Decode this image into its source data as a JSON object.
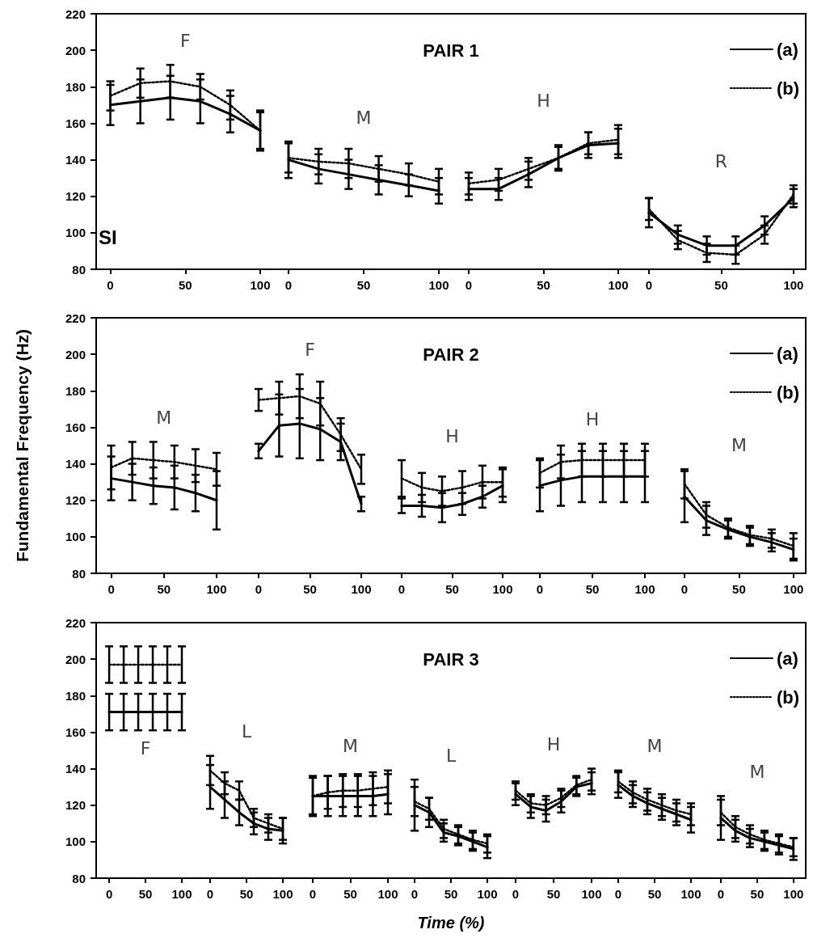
{
  "chart_data": [
    {
      "type": "line",
      "annotations": [
        "F",
        "SI"
      ],
      "xlim": [
        -10,
        100
      ],
      "xticks": [
        0,
        50,
        100
      ],
      "ylim": [
        80,
        220
      ],
      "yticks": [
        80,
        100,
        120,
        140,
        160,
        180,
        200,
        220
      ],
      "x": [
        0,
        20,
        40,
        60,
        80,
        100
      ],
      "series": [
        {
          "color": "#000000",
          "line_style": "solid",
          "values": [
            170,
            172,
            174,
            172,
            165,
            156
          ],
          "errors": [
            11,
            12,
            12,
            12,
            10,
            11
          ]
        },
        {
          "color": "#000000",
          "line_style": "dotted",
          "values": [
            175,
            182,
            183,
            180,
            170,
            156
          ],
          "errors": [
            8,
            8,
            9,
            7,
            8,
            10
          ]
        }
      ]
    },
    {
      "type": "line",
      "annotations": [
        "M"
      ],
      "tick_labels": "x",
      "xlim": [
        0,
        100
      ],
      "xticks": [
        0,
        50,
        100
      ],
      "ylim": [
        80,
        220
      ],
      "yticks": [
        80,
        100,
        120,
        140,
        160,
        180,
        200,
        220
      ],
      "x": [
        0,
        20,
        40,
        60,
        80,
        100
      ],
      "series": [
        {
          "color": "#000000",
          "line_style": "solid",
          "values": [
            140,
            135,
            132,
            129,
            126,
            123
          ],
          "errors": [
            10,
            8,
            8,
            8,
            6,
            7
          ]
        },
        {
          "color": "#000000",
          "line_style": "dotted",
          "values": [
            141,
            139,
            138,
            135,
            132,
            128
          ],
          "errors": [
            8,
            7,
            8,
            7,
            6,
            7
          ]
        }
      ]
    },
    {
      "type": "line",
      "title": "PAIR 1",
      "annotations": [
        "H"
      ],
      "tick_labels": "x",
      "xlim": [
        0,
        100
      ],
      "xticks": [
        0,
        50,
        100
      ],
      "ylim": [
        80,
        220
      ],
      "yticks": [
        80,
        100,
        120,
        140,
        160,
        180,
        200,
        220
      ],
      "x": [
        0,
        20,
        40,
        60,
        80,
        100
      ],
      "series": [
        {
          "color": "#000000",
          "line_style": "solid",
          "values": [
            124,
            124,
            132,
            141,
            148,
            149
          ],
          "errors": [
            6,
            6,
            7,
            7,
            7,
            8
          ]
        },
        {
          "color": "#000000",
          "line_style": "dotted",
          "values": [
            127,
            129,
            135,
            141,
            149,
            151
          ],
          "errors": [
            6,
            6,
            6,
            6,
            6,
            8
          ]
        }
      ]
    },
    {
      "type": "line",
      "annotations": [
        "R"
      ],
      "tick_labels": "x",
      "legend": "top right",
      "xlim": [
        0,
        109
      ],
      "xticks": [
        0,
        50,
        100
      ],
      "ylim": [
        80,
        220
      ],
      "yticks": [
        80,
        100,
        120,
        140,
        160,
        180,
        200,
        220
      ],
      "x": [
        0,
        20,
        40,
        60,
        80,
        100
      ],
      "series": [
        {
          "name": "(a)",
          "color": "#000000",
          "line_style": "solid",
          "values": [
            111,
            99,
            93,
            93,
            104,
            119
          ],
          "errors": [
            8,
            5,
            5,
            5,
            5,
            5
          ]
        },
        {
          "name": "(b)",
          "color": "#000000",
          "line_style": "dotted",
          "values": [
            113,
            96,
            89,
            88,
            99,
            121
          ],
          "errors": [
            6,
            5,
            5,
            5,
            5,
            5
          ]
        }
      ]
    },
    {
      "type": "line",
      "ylabel": "Fundamental Frequency (Hz)",
      "annotations": [
        "M"
      ],
      "xlim": [
        -15,
        100
      ],
      "xticks": [
        0,
        50,
        100
      ],
      "ylim": [
        80,
        220
      ],
      "yticks": [
        80,
        100,
        120,
        140,
        160,
        180,
        200,
        220
      ],
      "x": [
        0,
        20,
        40,
        60,
        80,
        100
      ],
      "series": [
        {
          "color": "#000000",
          "line_style": "solid",
          "values": [
            132,
            130,
            128,
            127,
            124,
            120
          ],
          "errors": [
            12,
            10,
            10,
            12,
            10,
            16
          ]
        },
        {
          "color": "#000000",
          "line_style": "dotted",
          "values": [
            138,
            143,
            142,
            141,
            139,
            137
          ],
          "errors": [
            12,
            9,
            10,
            9,
            9,
            9
          ]
        }
      ]
    },
    {
      "type": "line",
      "annotations": [
        "F"
      ],
      "tick_labels": "x",
      "xlim": [
        0,
        100
      ],
      "xticks": [
        0,
        50,
        100
      ],
      "ylim": [
        80,
        220
      ],
      "yticks": [
        80,
        100,
        120,
        140,
        160,
        180,
        200,
        220
      ],
      "x": [
        0,
        20,
        40,
        60,
        80,
        100
      ],
      "series": [
        {
          "color": "#000000",
          "line_style": "solid",
          "values": [
            147,
            161,
            162,
            159,
            152,
            118
          ],
          "errors": [
            4,
            17,
            19,
            17,
            10,
            4
          ]
        },
        {
          "color": "#000000",
          "line_style": "dotted",
          "values": [
            175,
            176,
            177,
            173,
            156,
            137
          ],
          "errors": [
            6,
            9,
            12,
            12,
            9,
            8
          ]
        }
      ]
    },
    {
      "type": "line",
      "title": "PAIR 2",
      "annotations": [
        "H"
      ],
      "tick_labels": "x",
      "xlim": [
        0,
        100
      ],
      "xticks": [
        0,
        50,
        100
      ],
      "ylim": [
        80,
        220
      ],
      "yticks": [
        80,
        100,
        120,
        140,
        160,
        180,
        200,
        220
      ],
      "x": [
        0,
        20,
        40,
        60,
        80,
        100
      ],
      "series": [
        {
          "color": "#000000",
          "line_style": "solid",
          "values": [
            117,
            117,
            116,
            118,
            122,
            128
          ],
          "errors": [
            4,
            6,
            8,
            6,
            6,
            9
          ]
        },
        {
          "color": "#000000",
          "line_style": "dotted",
          "values": [
            132,
            127,
            125,
            127,
            130,
            130
          ],
          "errors": [
            10,
            8,
            8,
            9,
            9,
            8
          ]
        }
      ]
    },
    {
      "type": "line",
      "annotations": [
        "H"
      ],
      "tick_labels": "x",
      "xlim": [
        0,
        100
      ],
      "xticks": [
        0,
        50,
        100
      ],
      "ylim": [
        80,
        220
      ],
      "yticks": [
        80,
        100,
        120,
        140,
        160,
        180,
        200,
        220
      ],
      "x": [
        0,
        20,
        40,
        60,
        80,
        100
      ],
      "series": [
        {
          "color": "#000000",
          "line_style": "solid",
          "values": [
            128,
            131,
            133,
            133,
            133,
            133
          ],
          "errors": [
            14,
            14,
            14,
            14,
            14,
            14
          ]
        },
        {
          "color": "#000000",
          "line_style": "dotted",
          "values": [
            135,
            141,
            142,
            142,
            142,
            142
          ],
          "errors": [
            8,
            9,
            9,
            9,
            9,
            9
          ]
        }
      ]
    },
    {
      "type": "line",
      "annotations": [
        "M"
      ],
      "tick_labels": "x",
      "legend": "top right",
      "xlim": [
        0,
        112
      ],
      "xticks": [
        0,
        50,
        100
      ],
      "ylim": [
        80,
        220
      ],
      "yticks": [
        80,
        100,
        120,
        140,
        160,
        180,
        200,
        220
      ],
      "x": [
        0,
        20,
        40,
        60,
        80,
        100
      ],
      "series": [
        {
          "name": "(a)",
          "color": "#000000",
          "line_style": "solid",
          "values": [
            122,
            109,
            104,
            100,
            97,
            93
          ],
          "errors": [
            14,
            8,
            5,
            5,
            5,
            6
          ]
        },
        {
          "name": "(b)",
          "color": "#000000",
          "line_style": "dotted",
          "values": [
            129,
            112,
            105,
            101,
            99,
            95
          ],
          "errors": [
            8,
            7,
            5,
            5,
            5,
            7
          ]
        }
      ]
    },
    {
      "type": "line",
      "annotations": [
        "F"
      ],
      "xlim": [
        -19,
        100
      ],
      "xticks": [
        0,
        50,
        100
      ],
      "ylim": [
        80,
        220
      ],
      "yticks": [
        80,
        100,
        120,
        140,
        160,
        180,
        200,
        220
      ],
      "x": [
        0,
        20,
        40,
        60,
        80,
        100
      ],
      "series": [
        {
          "color": "#000000",
          "line_style": "solid",
          "values": [
            171,
            171,
            171,
            171,
            171,
            171
          ],
          "errors": [
            10,
            10,
            10,
            10,
            10,
            10
          ]
        },
        {
          "color": "#000000",
          "line_style": "dotted",
          "values": [
            197,
            197,
            197,
            197,
            197,
            197
          ],
          "errors": [
            10,
            10,
            10,
            10,
            10,
            10
          ]
        }
      ]
    },
    {
      "type": "line",
      "annotations": [
        "L"
      ],
      "tick_labels": "x",
      "xlim": [
        0,
        100
      ],
      "xticks": [
        0,
        50,
        100
      ],
      "ylim": [
        80,
        220
      ],
      "yticks": [
        80,
        100,
        120,
        140,
        160,
        180,
        200,
        220
      ],
      "x": [
        0,
        20,
        40,
        60,
        80,
        100
      ],
      "series": [
        {
          "color": "#000000",
          "line_style": "solid",
          "values": [
            130,
            123,
            116,
            110,
            107,
            106
          ],
          "errors": [
            12,
            10,
            7,
            6,
            6,
            7
          ]
        },
        {
          "color": "#000000",
          "line_style": "dotted",
          "values": [
            139,
            132,
            128,
            113,
            110,
            107
          ],
          "errors": [
            8,
            6,
            5,
            5,
            5,
            6
          ]
        }
      ]
    },
    {
      "type": "line",
      "annotations": [
        "M"
      ],
      "tick_labels": "x",
      "xlim": [
        0,
        100
      ],
      "xticks": [
        0,
        50,
        100
      ],
      "ylim": [
        80,
        220
      ],
      "yticks": [
        80,
        100,
        120,
        140,
        160,
        180,
        200,
        220
      ],
      "x": [
        0,
        20,
        40,
        60,
        80,
        100
      ],
      "series": [
        {
          "color": "#000000",
          "line_style": "solid",
          "values": [
            125,
            125,
            125,
            125,
            125,
            126
          ],
          "errors": [
            11,
            11,
            11,
            11,
            11,
            11
          ]
        },
        {
          "color": "#000000",
          "line_style": "dotted",
          "values": [
            125,
            127,
            128,
            128,
            129,
            130
          ],
          "errors": [
            10,
            9,
            9,
            9,
            9,
            9
          ]
        }
      ]
    },
    {
      "type": "line",
      "title": "PAIR 3",
      "xlabel": "Time (%)",
      "annotations": [
        "L"
      ],
      "tick_labels": "x",
      "xlim": [
        0,
        100
      ],
      "xticks": [
        0,
        50,
        100
      ],
      "ylim": [
        80,
        220
      ],
      "yticks": [
        80,
        100,
        120,
        140,
        160,
        180,
        200,
        220
      ],
      "x": [
        0,
        20,
        40,
        60,
        80,
        100
      ],
      "series": [
        {
          "color": "#000000",
          "line_style": "solid",
          "values": [
            120,
            116,
            105,
            103,
            100,
            97
          ],
          "errors": [
            14,
            8,
            5,
            5,
            5,
            6
          ]
        },
        {
          "color": "#000000",
          "line_style": "dotted",
          "values": [
            122,
            118,
            107,
            104,
            101,
            99
          ],
          "errors": [
            8,
            6,
            5,
            5,
            5,
            5
          ]
        }
      ]
    },
    {
      "type": "line",
      "annotations": [
        "H"
      ],
      "tick_labels": "x",
      "xlim": [
        0,
        100
      ],
      "xticks": [
        0,
        50,
        100
      ],
      "ylim": [
        80,
        220
      ],
      "yticks": [
        80,
        100,
        120,
        140,
        160,
        180,
        200,
        220
      ],
      "x": [
        0,
        20,
        40,
        60,
        80,
        100
      ],
      "series": [
        {
          "color": "#000000",
          "line_style": "solid",
          "values": [
            126,
            119,
            117,
            122,
            130,
            132
          ],
          "errors": [
            6,
            6,
            6,
            6,
            5,
            6
          ]
        },
        {
          "color": "#000000",
          "line_style": "dotted",
          "values": [
            128,
            121,
            120,
            124,
            131,
            134
          ],
          "errors": [
            5,
            5,
            5,
            5,
            5,
            6
          ]
        }
      ]
    },
    {
      "type": "line",
      "annotations": [
        "M"
      ],
      "tick_labels": "x",
      "xlim": [
        0,
        100
      ],
      "xticks": [
        0,
        50,
        100
      ],
      "ylim": [
        80,
        220
      ],
      "yticks": [
        80,
        100,
        120,
        140,
        160,
        180,
        200,
        220
      ],
      "x": [
        0,
        20,
        40,
        60,
        80,
        100
      ],
      "series": [
        {
          "color": "#000000",
          "line_style": "solid",
          "values": [
            131,
            125,
            121,
            118,
            115,
            112
          ],
          "errors": [
            7,
            6,
            6,
            6,
            6,
            7
          ]
        },
        {
          "color": "#000000",
          "line_style": "dotted",
          "values": [
            133,
            127,
            123,
            120,
            117,
            115
          ],
          "errors": [
            6,
            6,
            6,
            6,
            6,
            6
          ]
        }
      ]
    },
    {
      "type": "line",
      "annotations": [
        "M"
      ],
      "tick_labels": "x",
      "legend": "top right",
      "xlim": [
        0,
        118
      ],
      "xticks": [
        0,
        50,
        100
      ],
      "ylim": [
        80,
        220
      ],
      "yticks": [
        80,
        100,
        120,
        140,
        160,
        180,
        200,
        220
      ],
      "x": [
        0,
        20,
        40,
        60,
        80,
        100
      ],
      "series": [
        {
          "name": "(a)",
          "color": "#000000",
          "line_style": "solid",
          "values": [
            113,
            106,
            102,
            100,
            98,
            96
          ],
          "errors": [
            12,
            6,
            5,
            5,
            5,
            6
          ]
        },
        {
          "name": "(b)",
          "color": "#000000",
          "line_style": "dotted",
          "values": [
            116,
            108,
            104,
            101,
            99,
            97
          ],
          "errors": [
            7,
            6,
            5,
            5,
            5,
            5
          ]
        }
      ]
    }
  ]
}
